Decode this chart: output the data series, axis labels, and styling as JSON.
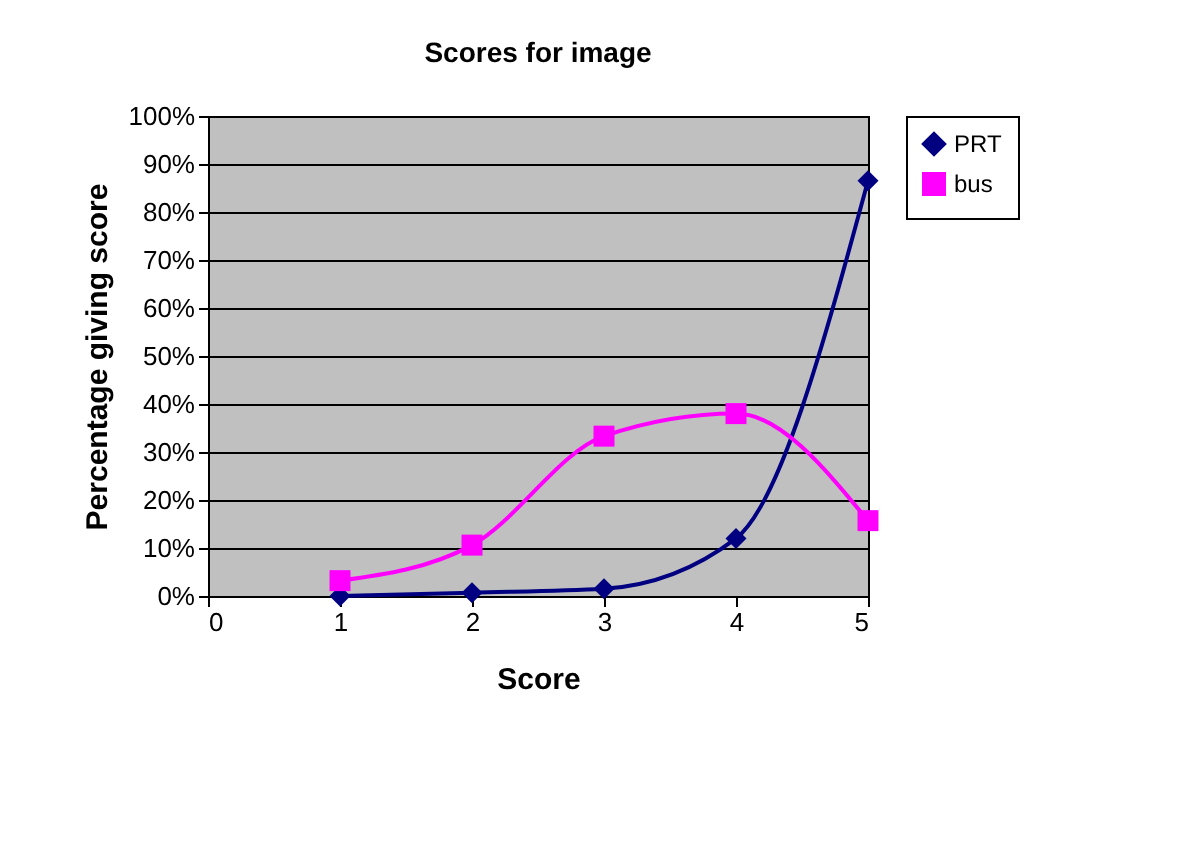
{
  "chart_data": {
    "type": "line",
    "title": "Scores for image",
    "xlabel": "Score",
    "ylabel": "Percentage giving score",
    "x": [
      1,
      2,
      3,
      4,
      5
    ],
    "series": [
      {
        "name": "PRT",
        "color": "#000080",
        "marker": "diamond",
        "values": [
          0,
          0.7,
          1.5,
          12,
          86.5
        ]
      },
      {
        "name": "bus",
        "color": "#ff00ff",
        "marker": "square",
        "values": [
          3.2,
          10.6,
          33.3,
          38,
          15.7
        ]
      }
    ],
    "xlim": [
      0,
      5
    ],
    "xticks": [
      0,
      1,
      2,
      3,
      4,
      5
    ],
    "ylim": [
      0,
      100
    ],
    "yticks": [
      {
        "value": 0,
        "label": "0%"
      },
      {
        "value": 10,
        "label": "10%"
      },
      {
        "value": 20,
        "label": "20%"
      },
      {
        "value": 30,
        "label": "30%"
      },
      {
        "value": 40,
        "label": "40%"
      },
      {
        "value": 50,
        "label": "50%"
      },
      {
        "value": 60,
        "label": "60%"
      },
      {
        "value": 70,
        "label": "70%"
      },
      {
        "value": 80,
        "label": "80%"
      },
      {
        "value": 90,
        "label": "90%"
      },
      {
        "value": 100,
        "label": "100%"
      }
    ],
    "grid": "y",
    "legend": "right",
    "line_style": "solid"
  }
}
